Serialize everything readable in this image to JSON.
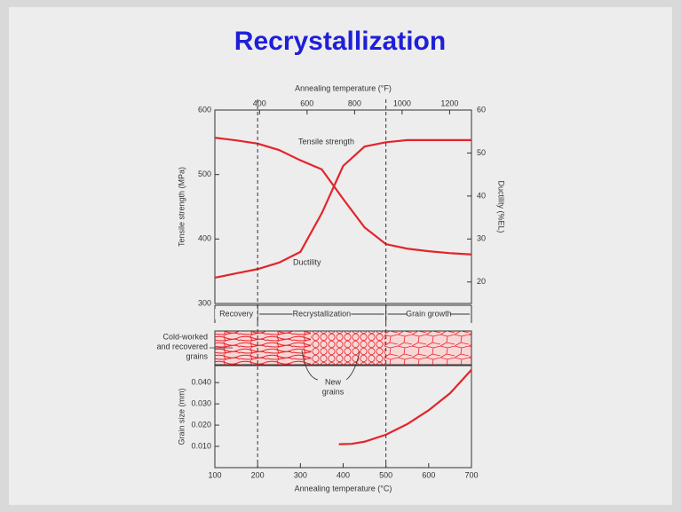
{
  "title": "Recrystallization",
  "chart_data": [
    {
      "type": "line",
      "x": [
        100,
        150,
        200,
        250,
        300,
        350,
        400,
        450,
        500,
        550,
        600,
        650,
        700
      ],
      "xlim": [
        100,
        700
      ],
      "x2label": "Annealing temperature (°F)",
      "x2lim": [
        212,
        1292
      ],
      "x2ticks": [
        400,
        600,
        800,
        1000,
        1200
      ],
      "ylabel": "Tensile strength (MPa)",
      "ylim": [
        300,
        600
      ],
      "yticks": [
        300,
        400,
        500,
        600
      ],
      "y2label": "Ductility (%EL)",
      "y2lim": [
        15,
        60
      ],
      "y2ticks": [
        20,
        30,
        40,
        50,
        60
      ],
      "series": [
        {
          "name": "Tensile strength",
          "color": "#e3242b",
          "values": [
            557,
            553,
            548,
            538,
            522,
            508,
            462,
            418,
            392,
            385,
            381,
            378,
            376
          ]
        },
        {
          "name": "Ductility",
          "color": "#e3242b",
          "axis": "y2",
          "values": [
            21,
            22,
            23,
            24.5,
            27,
            36,
            47,
            51.5,
            52.5,
            53,
            53,
            53,
            53
          ]
        }
      ],
      "dividers": [
        200,
        500
      ],
      "stages": [
        "Recovery",
        "Recrystallization",
        "Grain growth"
      ],
      "microstructure_labels": [
        [
          "Cold-worked",
          "and recovered",
          "grains"
        ],
        [
          "New",
          "grains"
        ]
      ]
    },
    {
      "type": "line",
      "xlabel": "Annealing temperature (°C)",
      "xlim": [
        100,
        700
      ],
      "xticks": [
        100,
        200,
        300,
        400,
        500,
        600,
        700
      ],
      "ylabel": "Grain size (mm)",
      "ylim": [
        0,
        0.048
      ],
      "yticks": [
        {
          "value": 0.01,
          "label": "0.010"
        },
        {
          "value": 0.02,
          "label": "0.020"
        },
        {
          "value": 0.03,
          "label": "0.030"
        },
        {
          "value": 0.04,
          "label": "0.040"
        }
      ],
      "x": [
        390,
        420,
        450,
        500,
        550,
        600,
        650,
        700
      ],
      "series": [
        {
          "color": "#e3242b",
          "values": [
            0.011,
            0.0112,
            0.0122,
            0.0155,
            0.0205,
            0.027,
            0.035,
            0.046
          ]
        }
      ]
    }
  ]
}
